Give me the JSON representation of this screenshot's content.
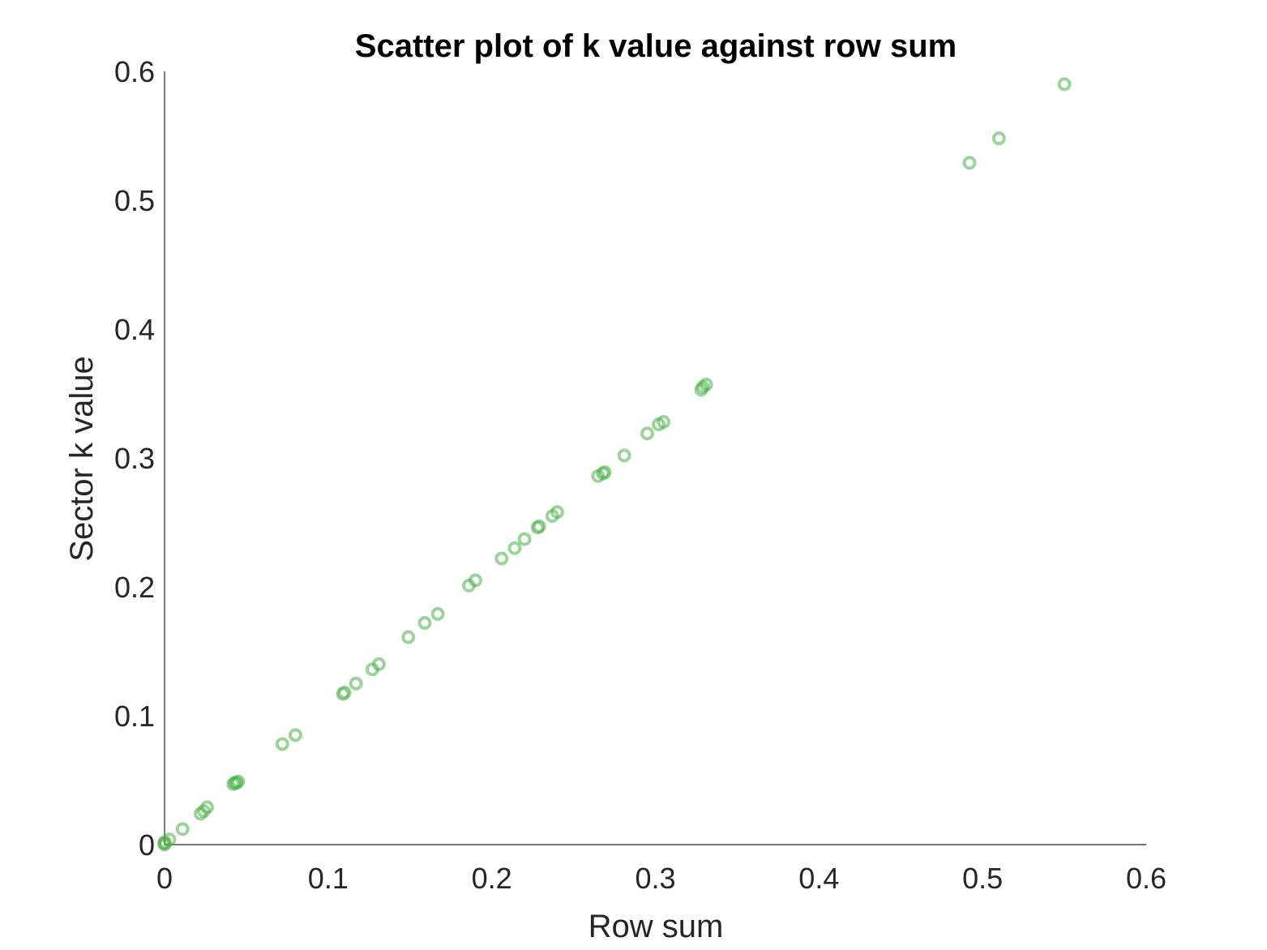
{
  "chart_data": {
    "type": "scatter",
    "title": "Scatter plot of k value against row sum",
    "xlabel": "Row sum",
    "ylabel": "Sector k value",
    "xlim": [
      0,
      0.6
    ],
    "ylim": [
      0,
      0.6
    ],
    "xticks": [
      0,
      0.1,
      0.2,
      0.3,
      0.4,
      0.5,
      0.6
    ],
    "yticks": [
      0,
      0.1,
      0.2,
      0.3,
      0.4,
      0.5,
      0.6
    ],
    "xtick_labels": [
      "0",
      "0.1",
      "0.2",
      "0.3",
      "0.4",
      "0.5",
      "0.6"
    ],
    "ytick_labels": [
      "0",
      "0.1",
      "0.2",
      "0.3",
      "0.4",
      "0.5",
      "0.6"
    ],
    "grid": false,
    "marker": "open-circle",
    "color": "#4daf4a",
    "series": [
      {
        "x": [
          0.0,
          0.0,
          0.0,
          0.003,
          0.011,
          0.022,
          0.024,
          0.026,
          0.042,
          0.043,
          0.044,
          0.045,
          0.072,
          0.08,
          0.109,
          0.11,
          0.117,
          0.127,
          0.131,
          0.149,
          0.159,
          0.167,
          0.186,
          0.19,
          0.206,
          0.214,
          0.22,
          0.228,
          0.229,
          0.237,
          0.24,
          0.265,
          0.268,
          0.269,
          0.281,
          0.295,
          0.302,
          0.305,
          0.328,
          0.329,
          0.331,
          0.492,
          0.51,
          0.55
        ],
        "y": [
          0.0,
          0.001,
          0.002,
          0.004,
          0.012,
          0.024,
          0.026,
          0.029,
          0.047,
          0.048,
          0.048,
          0.049,
          0.078,
          0.085,
          0.117,
          0.118,
          0.125,
          0.136,
          0.14,
          0.161,
          0.172,
          0.179,
          0.201,
          0.205,
          0.222,
          0.23,
          0.237,
          0.246,
          0.247,
          0.255,
          0.258,
          0.286,
          0.288,
          0.289,
          0.302,
          0.319,
          0.326,
          0.328,
          0.353,
          0.355,
          0.357,
          0.529,
          0.548,
          0.59
        ]
      }
    ]
  }
}
